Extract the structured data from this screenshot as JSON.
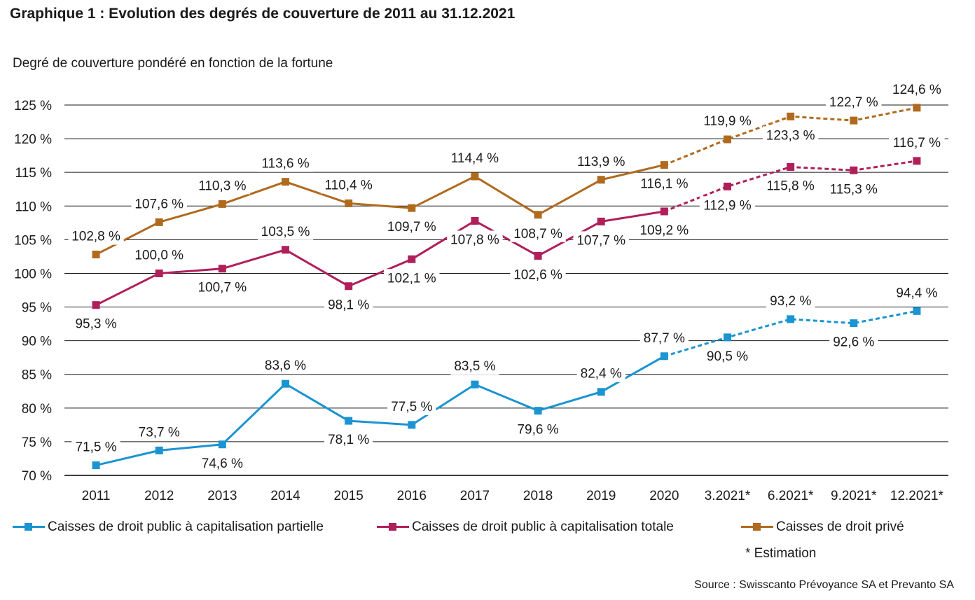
{
  "chart_data": {
    "type": "line",
    "title": "Graphique 1 : Evolution des degrés de couverture de 2011 au 31.12.2021",
    "ylabel": "Degré de couverture pondéré en fonction de la fortune",
    "categories": [
      "2011",
      "2012",
      "2013",
      "2014",
      "2015",
      "2016",
      "2017",
      "2018",
      "2019",
      "2020",
      "3.2021*",
      "6.2021*",
      "9.2021*",
      "12.2021*"
    ],
    "y_ticks": [
      "70 %",
      "75 %",
      "80 %",
      "85 %",
      "90 %",
      "95 %",
      "100 %",
      "105 %",
      "110 %",
      "115 %",
      "120 %",
      "125 %"
    ],
    "ylim": [
      70,
      126
    ],
    "grid": true,
    "estimated_from_index": 9,
    "series": [
      {
        "name": "Caisses de droit public à capitalisation partielle",
        "color": "#1b94d1",
        "values": [
          71.5,
          73.7,
          74.6,
          83.6,
          78.1,
          77.5,
          83.5,
          79.6,
          82.4,
          87.7,
          90.5,
          93.2,
          92.6,
          94.4
        ],
        "labels": [
          "71,5 %",
          "73,7 %",
          "74,6 %",
          "83,6 %",
          "78,1 %",
          "77,5 %",
          "83,5 %",
          "79,6 %",
          "82,4 %",
          "87,7 %",
          "90,5 %",
          "93,2 %",
          "92,6 %",
          "94,4 %"
        ]
      },
      {
        "name": "Caisses de droit public à capitalisation totale",
        "color": "#b01f5a",
        "values": [
          95.3,
          100.0,
          100.7,
          103.5,
          98.1,
          102.1,
          107.8,
          102.6,
          107.7,
          109.2,
          112.9,
          115.8,
          115.3,
          116.7
        ],
        "labels": [
          "95,3 %",
          "100,0 %",
          "100,7 %",
          "103,5 %",
          "98,1 %",
          "102,1 %",
          "107,8 %",
          "102,6 %",
          "107,7 %",
          "109,2 %",
          "112,9 %",
          "115,8 %",
          "115,3 %",
          "116,7 %"
        ]
      },
      {
        "name": "Caisses de droit privé",
        "color": "#b06a1e",
        "values": [
          102.8,
          107.6,
          110.3,
          113.6,
          110.4,
          109.7,
          114.4,
          108.7,
          113.9,
          116.1,
          119.9,
          123.3,
          122.7,
          124.6
        ],
        "labels": [
          "102,8 %",
          "107,6 %",
          "110,3 %",
          "113,6 %",
          "110,4 %",
          "109,7 %",
          "114,4 %",
          "108,7 %",
          "113,9 %",
          "116,1 %",
          "119,9 %",
          "123,3 %",
          "122,7 %",
          "124,6 %"
        ]
      }
    ],
    "footnote": "* Estimation",
    "source": "Source : Swisscanto Prévoyance SA et Prevanto SA"
  }
}
